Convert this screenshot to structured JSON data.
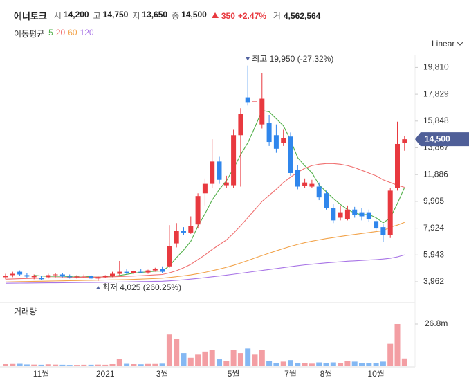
{
  "header": {
    "name": "에너토크",
    "items": [
      {
        "label": "시",
        "value": "14,200"
      },
      {
        "label": "고",
        "value": "14,750"
      },
      {
        "label": "저",
        "value": "13,650"
      },
      {
        "label": "종",
        "value": "14,500"
      }
    ],
    "change": "350",
    "change_pct": "+2.47%",
    "volume_label": "거",
    "volume_value": "4,562,564"
  },
  "chart_data": {
    "type": "candlestick",
    "scale": "Linear",
    "legend_title": "이동평균",
    "volume_title": "거래량",
    "categories": [
      null,
      null,
      null,
      null,
      null,
      "11월",
      null,
      null,
      null,
      null,
      null,
      null,
      null,
      null,
      "2021",
      null,
      null,
      null,
      null,
      null,
      null,
      null,
      "3월",
      null,
      null,
      null,
      null,
      null,
      null,
      null,
      null,
      null,
      "5월",
      null,
      null,
      null,
      null,
      null,
      null,
      null,
      "7월",
      null,
      null,
      null,
      null,
      "8월",
      null,
      null,
      null,
      null,
      null,
      null,
      "10월",
      null,
      null,
      null,
      null
    ],
    "open": [
      4300,
      4450,
      4700,
      4450,
      4300,
      4250,
      4300,
      4450,
      4500,
      4350,
      4300,
      4350,
      4400,
      4200,
      4300,
      4400,
      4550,
      4700,
      4600,
      4700,
      4650,
      4800,
      4900,
      5100,
      6800,
      7700,
      7600,
      8200,
      10500,
      11200,
      12850,
      11100,
      11100,
      14800,
      17600,
      17250,
      15600,
      15700,
      14800,
      14250,
      14700,
      12250,
      11050,
      11000,
      11000,
      10500,
      9400,
      8700,
      8600,
      9300,
      9100,
      9100,
      8450,
      8000,
      7400,
      10900,
      14200
    ],
    "high": [
      4550,
      4700,
      4800,
      4600,
      4500,
      4400,
      4550,
      4600,
      4600,
      4500,
      4450,
      4500,
      4450,
      4350,
      4450,
      4700,
      5500,
      4900,
      4800,
      4900,
      4850,
      5000,
      5100,
      8150,
      8300,
      8000,
      8800,
      10500,
      11600,
      14500,
      13200,
      11800,
      15200,
      16800,
      19950,
      18200,
      19400,
      16300,
      15600,
      15200,
      15000,
      12600,
      11600,
      11500,
      11300,
      10700,
      9700,
      9600,
      9600,
      9500,
      9400,
      9300,
      8700,
      8200,
      10900,
      15800,
      14750
    ],
    "low": [
      4150,
      4300,
      4400,
      4250,
      4150,
      4100,
      4200,
      4300,
      4300,
      4200,
      4200,
      4250,
      4150,
      4025,
      4250,
      4300,
      4450,
      4500,
      4500,
      4600,
      4550,
      4700,
      4600,
      5000,
      6500,
      7400,
      7500,
      7900,
      9600,
      10900,
      11200,
      10900,
      10900,
      11000,
      17000,
      16800,
      15300,
      14000,
      13500,
      14000,
      11800,
      10800,
      10900,
      10900,
      10000,
      9300,
      8300,
      8500,
      8500,
      8700,
      8500,
      8400,
      7700,
      6900,
      7200,
      10700,
      13650
    ],
    "close": [
      4400,
      4550,
      4500,
      4350,
      4400,
      4150,
      4450,
      4500,
      4350,
      4300,
      4350,
      4400,
      4200,
      4300,
      4400,
      4550,
      4700,
      4600,
      4750,
      4650,
      4800,
      4900,
      4700,
      6600,
      7750,
      7600,
      8100,
      10300,
      11200,
      12850,
      11500,
      11300,
      14800,
      16350,
      17200,
      17300,
      17500,
      14300,
      13800,
      14600,
      12000,
      11000,
      11300,
      11200,
      10200,
      9400,
      8500,
      9100,
      9300,
      8900,
      8800,
      8600,
      7900,
      7400,
      10700,
      14150,
      14500
    ],
    "volume": [
      0.9,
      1.0,
      1.1,
      0.7,
      0.6,
      0.5,
      0.8,
      0.6,
      0.5,
      0.4,
      0.4,
      0.5,
      0.5,
      0.6,
      0.5,
      0.9,
      4.2,
      1.1,
      0.9,
      0.8,
      1.0,
      1.0,
      1.2,
      20,
      17,
      8,
      5,
      7,
      9,
      10,
      4,
      3,
      10,
      8,
      11,
      7,
      10,
      3,
      1.5,
      2.5,
      3.5,
      1.5,
      1.5,
      1.2,
      2,
      1.5,
      2,
      1.5,
      3,
      2.5,
      1.5,
      1.5,
      1.5,
      2.5,
      14,
      26.8,
      4.56
    ],
    "up_color": "#e8393f",
    "down_color": "#2f86ec",
    "up_volume_color": "#f39ea3",
    "down_volume_color": "#84b8f3",
    "ylim": [
      3297,
      20701
    ],
    "yticks": [
      {
        "value": 3962,
        "label": "3,962"
      },
      {
        "value": 5943,
        "label": "5,943"
      },
      {
        "value": 7924,
        "label": "7,924"
      },
      {
        "value": 9905,
        "label": "9,905"
      },
      {
        "value": 11886,
        "label": "11,886"
      },
      {
        "value": 13867,
        "label": "13,867"
      },
      {
        "value": 15848,
        "label": "15,848"
      },
      {
        "value": 17829,
        "label": "17,829"
      },
      {
        "value": 19810,
        "label": "19,810"
      }
    ],
    "volume_ylim": [
      0,
      39.3
    ],
    "volume_yticks": [
      {
        "value": 26.8,
        "label": "26.8m"
      }
    ],
    "last_price_label": "14,500",
    "annotations": {
      "high": "최고 19,950 (-27.32%)",
      "low": "최저 4,025 (260.25%)"
    },
    "series": [
      {
        "name": "5",
        "color": "#52b04a",
        "values": [
          null,
          null,
          null,
          null,
          4440,
          4390,
          4370,
          4370,
          4370,
          4350,
          4390,
          4380,
          4320,
          4310,
          4330,
          4370,
          4430,
          4510,
          4600,
          4650,
          4700,
          4740,
          4760,
          5130,
          5750,
          6310,
          6950,
          8070,
          8990,
          10010,
          10790,
          11430,
          12330,
          13360,
          14230,
          15390,
          16630,
          16530,
          16020,
          15500,
          14440,
          13140,
          12540,
          12020,
          11140,
          10620,
          10120,
          9680,
          9300,
          9040,
          8920,
          8940,
          8700,
          8320,
          8680,
          9750,
          10930
        ]
      },
      {
        "name": "20",
        "color": "#f07070",
        "values": [
          4150,
          4170,
          4190,
          4200,
          4220,
          4230,
          4250,
          4260,
          4270,
          4280,
          4290,
          4300,
          4300,
          4310,
          4320,
          4330,
          4350,
          4370,
          4390,
          4410,
          4440,
          4470,
          4500,
          4620,
          4780,
          5000,
          5250,
          5600,
          5950,
          6350,
          6700,
          7050,
          7550,
          8100,
          8700,
          9300,
          9900,
          10350,
          10800,
          11300,
          11700,
          12050,
          12350,
          12550,
          12650,
          12700,
          12700,
          12650,
          12550,
          12400,
          12200,
          12000,
          11800,
          11500,
          11300,
          11100,
          10950
        ]
      },
      {
        "name": "60",
        "color": "#f2a34a",
        "values": [
          3950,
          3960,
          3970,
          3980,
          3990,
          4000,
          4010,
          4020,
          4030,
          4040,
          4050,
          4060,
          4070,
          4080,
          4090,
          4100,
          4110,
          4120,
          4140,
          4160,
          4180,
          4200,
          4230,
          4280,
          4340,
          4400,
          4470,
          4560,
          4660,
          4780,
          4900,
          5030,
          5180,
          5350,
          5530,
          5720,
          5900,
          6080,
          6250,
          6420,
          6580,
          6720,
          6850,
          6960,
          7060,
          7150,
          7230,
          7310,
          7390,
          7460,
          7530,
          7600,
          7670,
          7740,
          8000,
          8150,
          8350
        ]
      },
      {
        "name": "120",
        "color": "#a874e6",
        "values": [
          3850,
          3855,
          3860,
          3865,
          3870,
          3875,
          3880,
          3885,
          3890,
          3895,
          3900,
          3905,
          3910,
          3915,
          3920,
          3930,
          3940,
          3950,
          3960,
          3970,
          3980,
          3990,
          4000,
          4030,
          4070,
          4110,
          4160,
          4210,
          4270,
          4330,
          4390,
          4450,
          4520,
          4590,
          4660,
          4730,
          4800,
          4870,
          4940,
          5010,
          5080,
          5150,
          5210,
          5260,
          5310,
          5360,
          5400,
          5440,
          5480,
          5510,
          5540,
          5570,
          5600,
          5640,
          5700,
          5800,
          5950
        ]
      }
    ]
  }
}
